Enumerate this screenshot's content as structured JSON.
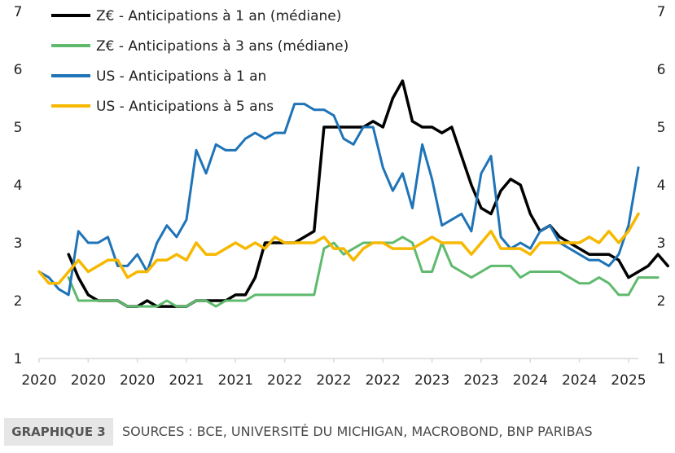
{
  "chart_data": {
    "type": "line",
    "y_left_ticks": [
      "1",
      "2",
      "3",
      "4",
      "5",
      "6",
      "7"
    ],
    "y_right_ticks": [
      "1",
      "2",
      "3",
      "4",
      "5",
      "6",
      "7"
    ],
    "ylim": [
      1,
      7
    ],
    "x_tick_labels": [
      "2020",
      "2020",
      "2020",
      "2021",
      "2021",
      "2022",
      "2022",
      "2022",
      "2023",
      "2023",
      "2024",
      "2024",
      "2025"
    ],
    "x_tick_months": [
      0,
      5,
      10,
      15,
      20,
      25,
      30,
      35,
      40,
      45,
      50,
      55,
      60
    ],
    "xlim": [
      0,
      61
    ],
    "grid": false,
    "legend_position": "top-left",
    "series": [
      {
        "name": "Z€ - Anticipations à 1 an (médiane)",
        "color": "#000000",
        "start": 3,
        "values": [
          2.8,
          2.4,
          2.1,
          2.0,
          2.0,
          2.0,
          1.9,
          1.9,
          2.0,
          1.9,
          1.9,
          1.9,
          1.9,
          2.0,
          2.0,
          2.0,
          2.0,
          2.1,
          2.1,
          2.4,
          3.0,
          3.0,
          3.0,
          3.0,
          3.1,
          3.2,
          5.0,
          5.0,
          5.0,
          5.0,
          5.0,
          5.1,
          5.0,
          5.5,
          5.8,
          5.1,
          5.0,
          5.0,
          4.9,
          5.0,
          4.5,
          4.0,
          3.6,
          3.5,
          3.9,
          4.1,
          4.0,
          3.5,
          3.2,
          3.3,
          3.1,
          3.0,
          2.9,
          2.8,
          2.8,
          2.8,
          2.7,
          2.4,
          2.5,
          2.6,
          2.8,
          2.6
        ]
      },
      {
        "name": "Z€ - Anticipations à 3 ans (médiane)",
        "color": "#5fba6e",
        "start": 3,
        "values": [
          2.4,
          2.0,
          2.0,
          2.0,
          2.0,
          2.0,
          1.9,
          1.9,
          1.9,
          1.9,
          2.0,
          1.9,
          1.9,
          2.0,
          2.0,
          1.9,
          2.0,
          2.0,
          2.0,
          2.1,
          2.1,
          2.1,
          2.1,
          2.1,
          2.1,
          2.1,
          2.9,
          3.0,
          2.8,
          2.9,
          3.0,
          3.0,
          3.0,
          3.0,
          3.1,
          3.0,
          2.5,
          2.5,
          3.0,
          2.6,
          2.5,
          2.4,
          2.5,
          2.6,
          2.6,
          2.6,
          2.4,
          2.5,
          2.5,
          2.5,
          2.5,
          2.4,
          2.3,
          2.3,
          2.4,
          2.3,
          2.1,
          2.1,
          2.4,
          2.4,
          2.4
        ]
      },
      {
        "name": "US - Anticipations à 1 an",
        "color": "#1f73b7",
        "start": 0,
        "values": [
          2.5,
          2.4,
          2.2,
          2.1,
          3.2,
          3.0,
          3.0,
          3.1,
          2.6,
          2.6,
          2.8,
          2.5,
          3.0,
          3.3,
          3.1,
          3.4,
          4.6,
          4.2,
          4.7,
          4.6,
          4.6,
          4.8,
          4.9,
          4.8,
          4.9,
          4.9,
          5.4,
          5.4,
          5.3,
          5.3,
          5.2,
          4.8,
          4.7,
          5.0,
          5.0,
          4.3,
          3.9,
          4.2,
          3.6,
          4.7,
          4.1,
          3.3,
          3.4,
          3.5,
          3.2,
          4.2,
          4.5,
          3.1,
          2.9,
          3.0,
          2.9,
          3.2,
          3.3,
          3.0,
          2.9,
          2.8,
          2.7,
          2.7,
          2.6,
          2.8,
          3.3,
          4.3
        ]
      },
      {
        "name": "US - Anticipations à 5 ans",
        "color": "#f7b800",
        "start": 0,
        "values": [
          2.5,
          2.3,
          2.3,
          2.5,
          2.7,
          2.5,
          2.6,
          2.7,
          2.7,
          2.4,
          2.5,
          2.5,
          2.7,
          2.7,
          2.8,
          2.7,
          3.0,
          2.8,
          2.8,
          2.9,
          3.0,
          2.9,
          3.0,
          2.9,
          3.1,
          3.0,
          3.0,
          3.0,
          3.0,
          3.1,
          2.9,
          2.9,
          2.7,
          2.9,
          3.0,
          3.0,
          2.9,
          2.9,
          2.9,
          3.0,
          3.1,
          3.0,
          3.0,
          3.0,
          2.8,
          3.0,
          3.2,
          2.9,
          2.9,
          2.9,
          2.8,
          3.0,
          3.0,
          3.0,
          3.0,
          3.0,
          3.1,
          3.0,
          3.2,
          3.0,
          3.2,
          3.5
        ]
      }
    ]
  },
  "footer": {
    "badge": "GRAPHIQUE 3",
    "sources": "SOURCES : BCE, UNIVERSITÉ DU MICHIGAN, MACROBOND, BNP PARIBAS"
  }
}
